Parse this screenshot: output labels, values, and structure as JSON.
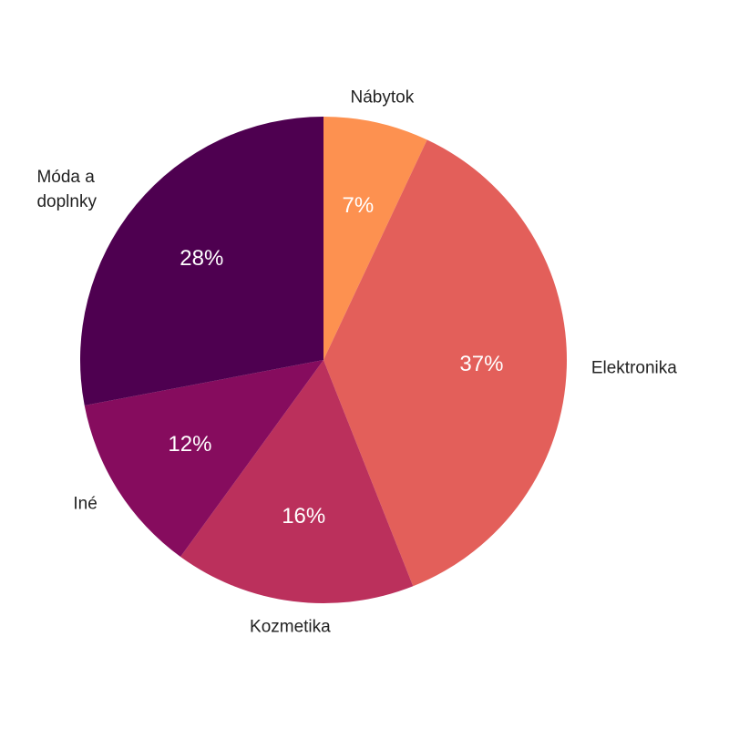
{
  "chart_data": {
    "type": "pie",
    "categories": [
      "Nábytok",
      "Elektronika",
      "Kozmetika",
      "Iné",
      "Móda a doplnky"
    ],
    "values": [
      7,
      37,
      16,
      12,
      28
    ],
    "value_labels": [
      "7%",
      "37%",
      "16%",
      "12%",
      "28%"
    ],
    "colors": [
      "#fd9150",
      "#e35f5a",
      "#bb305c",
      "#860c5e",
      "#4e0050"
    ]
  }
}
